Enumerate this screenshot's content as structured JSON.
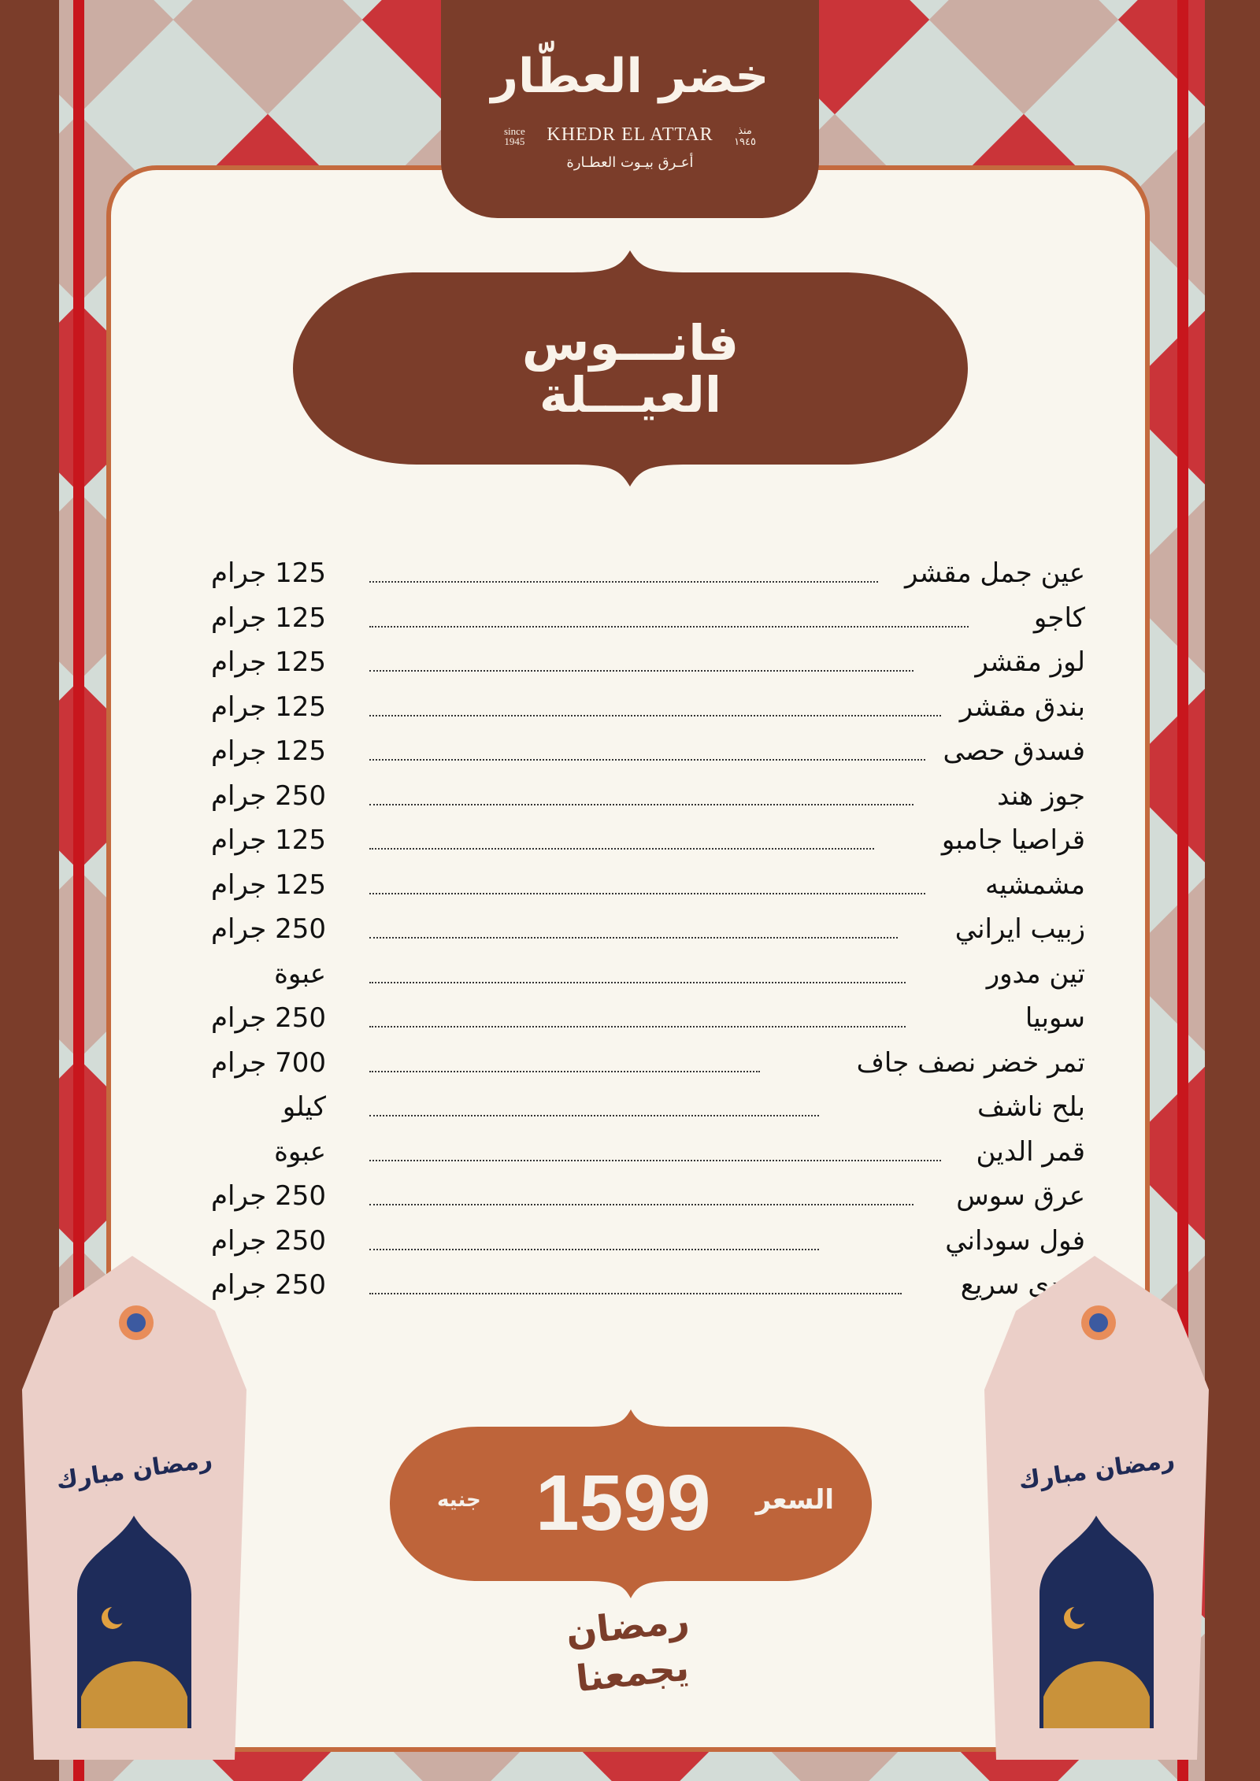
{
  "colors": {
    "brand_brown": "#7B3D2A",
    "accent_orange": "#C46A3E",
    "price_badge": "#BE643A",
    "stripe_red": "#C8161D",
    "card_bg": "#F9F6EE",
    "pattern_bg": "#D3DCD7"
  },
  "logo": {
    "arabic_name": "خضر العطّار",
    "english_name": "KHEDR EL ATTAR",
    "since_en": "since",
    "year_en": "1945",
    "since_ar": "منذ",
    "year_ar": "١٩٤٥",
    "tagline": "أعـرق بيـوت العطـارة"
  },
  "title": {
    "line1": "فانـــوس",
    "line2": "العيـــلة"
  },
  "items": [
    {
      "name": "عين جمل مقشر",
      "qty": "125 جرام"
    },
    {
      "name": "كاجو",
      "qty": "125 جرام"
    },
    {
      "name": "لوز مقشر",
      "qty": "125 جرام"
    },
    {
      "name": "بندق مقشر",
      "qty": "125 جرام"
    },
    {
      "name": "فسدق حصى",
      "qty": "125 جرام"
    },
    {
      "name": "جوز هند",
      "qty": "250 جرام"
    },
    {
      "name": "قراصيا جامبو",
      "qty": "125 جرام"
    },
    {
      "name": "مشمشيه",
      "qty": "125 جرام"
    },
    {
      "name": "زبيب ايراني",
      "qty": "250 جرام"
    },
    {
      "name": "تين مدور",
      "qty": "عبوة"
    },
    {
      "name": "سوبيا",
      "qty": "250 جرام"
    },
    {
      "name": "تمر خضر نصف جاف",
      "qty": "700 جرام"
    },
    {
      "name": "بلح ناشف",
      "qty": "كيلو"
    },
    {
      "name": "قمر الدين",
      "qty": "عبوة"
    },
    {
      "name": "عرق سوس",
      "qty": "250 جرام"
    },
    {
      "name": "فول سوداني",
      "qty": "250 جرام"
    },
    {
      "name": "هندى سريع",
      "qty": "250 جرام"
    }
  ],
  "price": {
    "label": "السعر",
    "value": "1599",
    "currency": "جنيه"
  },
  "ramadan_logo": {
    "line1": "رمضان",
    "line2": "يجمعنا"
  },
  "lantern_text": "رمضان مبارك"
}
